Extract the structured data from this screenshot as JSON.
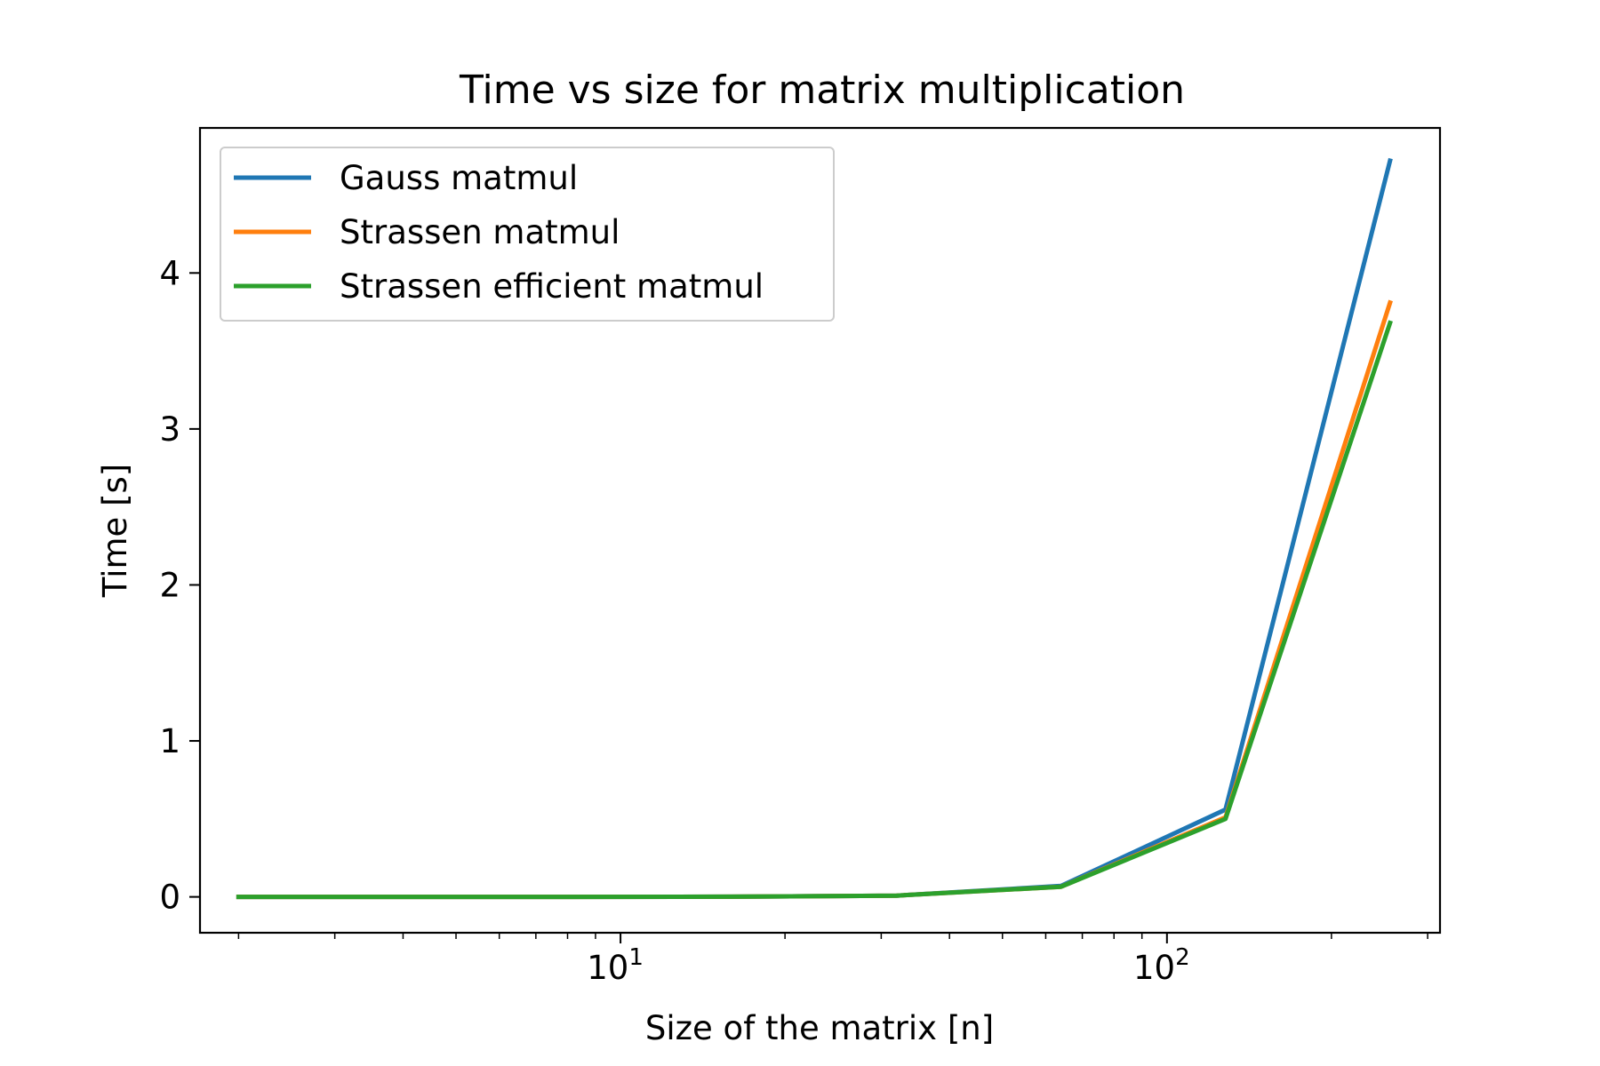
{
  "chart_data": {
    "type": "line",
    "title": "Time vs size for matrix multiplication",
    "xlabel": "Size of the matrix [n]",
    "ylabel": "Time [s]",
    "xscale": "log",
    "xlim": [
      1.7,
      316
    ],
    "ylim": [
      -0.23,
      4.93
    ],
    "x_ticks": [
      {
        "value": 10,
        "base": "10",
        "exp": "1"
      },
      {
        "value": 100,
        "base": "10",
        "exp": "2"
      }
    ],
    "y_ticks": [
      0,
      1,
      2,
      3,
      4
    ],
    "grid": false,
    "legend_position": "top-left",
    "x": [
      2,
      4,
      8,
      16,
      32,
      64,
      128,
      256
    ],
    "series": [
      {
        "name": "Gauss matmul",
        "color": "#1f77b4",
        "values": [
          0.0,
          0.0,
          0.0,
          0.001,
          0.008,
          0.07,
          0.56,
          4.72
        ]
      },
      {
        "name": "Strassen matmul",
        "color": "#ff7f0e",
        "values": [
          0.0,
          0.0,
          0.0,
          0.001,
          0.008,
          0.065,
          0.51,
          3.81
        ]
      },
      {
        "name": "Strassen efficient matmul",
        "color": "#2ca02c",
        "values": [
          0.0,
          0.0,
          0.0,
          0.001,
          0.008,
          0.065,
          0.5,
          3.68
        ]
      }
    ]
  }
}
